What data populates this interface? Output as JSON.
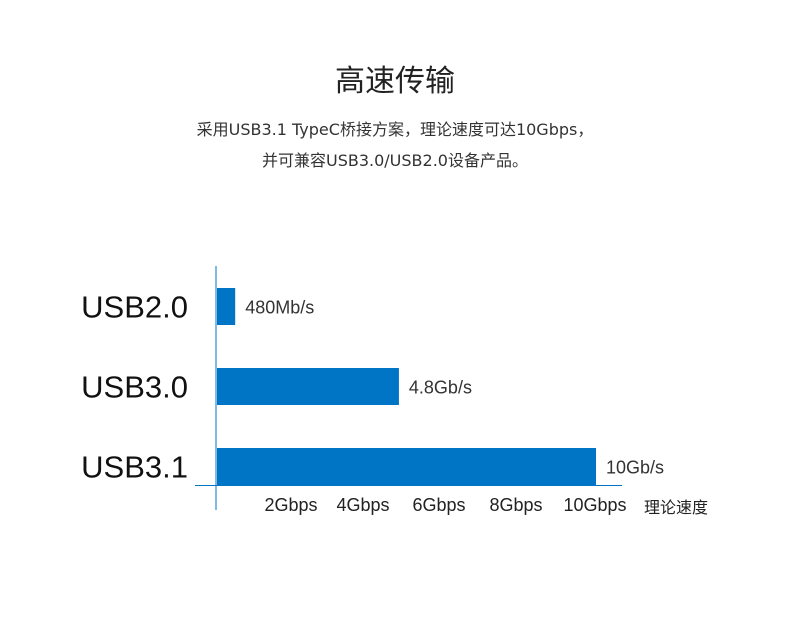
{
  "header": {
    "title": "高速传输",
    "subtitle_lines": [
      "采用USB3.1 TypeC桥接方案，理论速度可达10Gbps，",
      "并可兼容USB3.0/USB2.0设备产品。"
    ]
  },
  "chart_data": {
    "type": "bar",
    "orientation": "horizontal",
    "categories": [
      "USB2.0",
      "USB3.0",
      "USB3.1"
    ],
    "values_gbps": [
      0.48,
      4.8,
      10
    ],
    "data_labels": [
      "480Mb/s",
      "4.8Gb/s",
      "10Gb/s"
    ],
    "x_tick_labels": [
      "2Gbps",
      "4Gbps",
      "6Gbps",
      "8Gbps",
      "10Gbps"
    ],
    "xlabel": "理论速度",
    "xlim": [
      0,
      10
    ],
    "grid": false,
    "bar_color": "#0074c5"
  }
}
